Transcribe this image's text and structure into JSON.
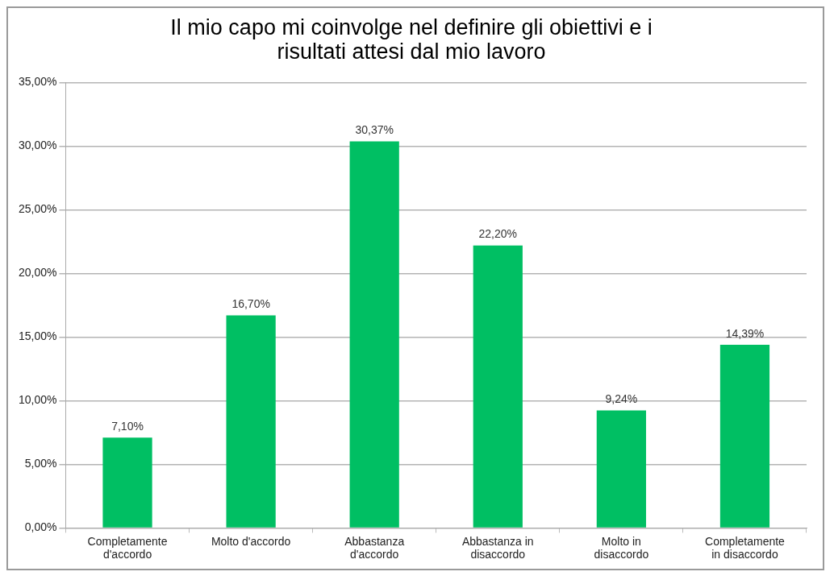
{
  "chart_data": {
    "type": "bar",
    "title": "Il mio capo mi coinvolge nel definire gli obiettivi e i risultati attesi dal mio lavoro",
    "categories": [
      "Completamente d'accordo",
      "Molto d'accordo",
      "Abbastanza d'accordo",
      "Abbastanza in disaccordo",
      "Molto in disaccordo",
      "Completamente in disaccordo"
    ],
    "values": [
      7.1,
      16.7,
      30.37,
      22.2,
      9.24,
      14.39
    ],
    "value_labels": [
      "7,10%",
      "16,70%",
      "30,37%",
      "22,20%",
      "9,24%",
      "14,39%"
    ],
    "color": "#00bf63",
    "ylim": [
      0,
      35
    ],
    "yticks": [
      {
        "value": 0,
        "label": "0,00%"
      },
      {
        "value": 5,
        "label": "5,00%"
      },
      {
        "value": 10,
        "label": "10,00%"
      },
      {
        "value": 15,
        "label": "15,00%"
      },
      {
        "value": 20,
        "label": "20,00%"
      },
      {
        "value": 25,
        "label": "25,00%"
      },
      {
        "value": 30,
        "label": "30,00%"
      },
      {
        "value": 35,
        "label": "35,00%"
      }
    ],
    "grid": "y",
    "legend": false
  }
}
